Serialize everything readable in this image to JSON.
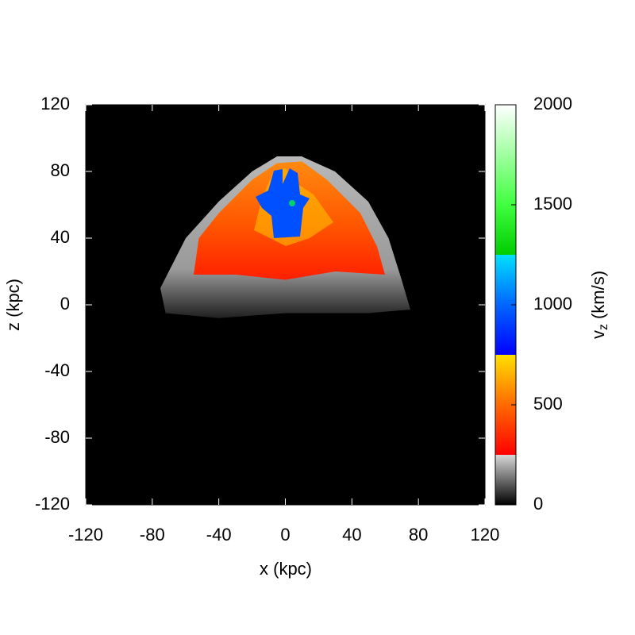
{
  "chart_data": {
    "type": "heatmap",
    "xlabel": "x (kpc)",
    "ylabel": "z (kpc)",
    "xlim": [
      -120,
      120
    ],
    "ylim": [
      -120,
      120
    ],
    "xticks": [
      -120,
      -80,
      -40,
      0,
      40,
      80,
      120
    ],
    "yticks": [
      -120,
      -80,
      -40,
      0,
      40,
      80,
      120
    ],
    "colorbar": {
      "label": "v",
      "label_sub": "z",
      "label_unit": "(km/s)",
      "lim": [
        0,
        2000
      ],
      "ticks": [
        0,
        500,
        1000,
        1500,
        2000
      ],
      "stops": [
        {
          "value": 0,
          "color": "#000000"
        },
        {
          "value": 250,
          "color": "#d8d8d8"
        },
        {
          "value": 250,
          "color": "#ff0000"
        },
        {
          "value": 500,
          "color": "#ff6a00"
        },
        {
          "value": 750,
          "color": "#ffe000"
        },
        {
          "value": 750,
          "color": "#0000ff"
        },
        {
          "value": 1000,
          "color": "#0066ff"
        },
        {
          "value": 1250,
          "color": "#00e0ff"
        },
        {
          "value": 1250,
          "color": "#00cc00"
        },
        {
          "value": 1500,
          "color": "#40ff40"
        },
        {
          "value": 2000,
          "color": "#ffffff"
        }
      ]
    }
  }
}
